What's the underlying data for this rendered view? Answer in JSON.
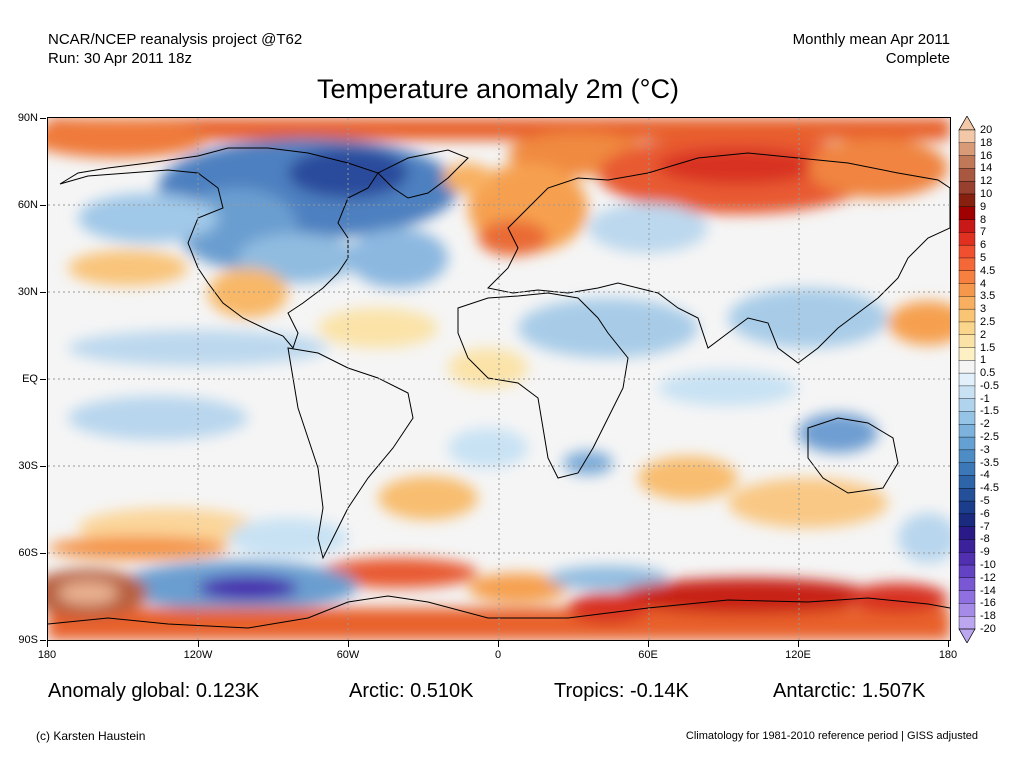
{
  "header": {
    "left_line1": "NCAR/NCEP reanalysis project @T62",
    "left_line2": "Run: 30 Apr 2011 18z",
    "right_line1": "Monthly mean Apr 2011",
    "right_line2": "Complete"
  },
  "title": "Temperature anomaly 2m (°C)",
  "lat_labels": [
    "90N",
    "60N",
    "30N",
    "EQ",
    "30S",
    "60S",
    "90S"
  ],
  "lon_labels": [
    "180",
    "120W",
    "60W",
    "0",
    "60E",
    "120E",
    "180"
  ],
  "stats": {
    "global": "Anomaly global: 0.123K",
    "arctic": "Arctic: 0.510K",
    "tropics": "Tropics: -0.14K",
    "antarctic": "Antarctic: 1.507K"
  },
  "footer": {
    "credit": "(c) Karsten Haustein",
    "note": "Climatology for 1981-2010 reference period | GISS adjusted"
  },
  "colorbar": {
    "labels": [
      "20",
      "18",
      "16",
      "14",
      "12",
      "10",
      "9",
      "8",
      "7",
      "6",
      "5",
      "4.5",
      "4",
      "3.5",
      "3",
      "2.5",
      "2",
      "1.5",
      "1",
      "0.5",
      "-0.5",
      "-1",
      "-1.5",
      "-2",
      "-2.5",
      "-3",
      "-3.5",
      "-4",
      "-4.5",
      "-5",
      "-6",
      "-7",
      "-8",
      "-9",
      "-10",
      "-12",
      "-14",
      "-16",
      "-18",
      "-20"
    ],
    "colors": [
      "#f2c8a8",
      "#d99a78",
      "#c07858",
      "#a85840",
      "#984030",
      "#882010",
      "#a00000",
      "#c81818",
      "#e03020",
      "#f05030",
      "#f46838",
      "#f58040",
      "#f6984c",
      "#f8b060",
      "#f9c474",
      "#fad58c",
      "#fbe3a8",
      "#fdf0c4",
      "#f5f5f5",
      "#e2f0fb",
      "#c8e2f4",
      "#b0d4ee",
      "#96c4e6",
      "#7cb2dc",
      "#64a0d2",
      "#4e8cc6",
      "#3c78b8",
      "#2e64a8",
      "#24509a",
      "#1c3c8c",
      "#1a2a7e",
      "#2a1a88",
      "#3c229a",
      "#5030b0",
      "#6442c4",
      "#7a58d4",
      "#9070e0",
      "#a68ae8",
      "#bca6f0"
    ]
  },
  "map": {
    "colors": {
      "ocean": "#f5f5f5",
      "grid": "#999999",
      "coast": "#000000"
    }
  }
}
